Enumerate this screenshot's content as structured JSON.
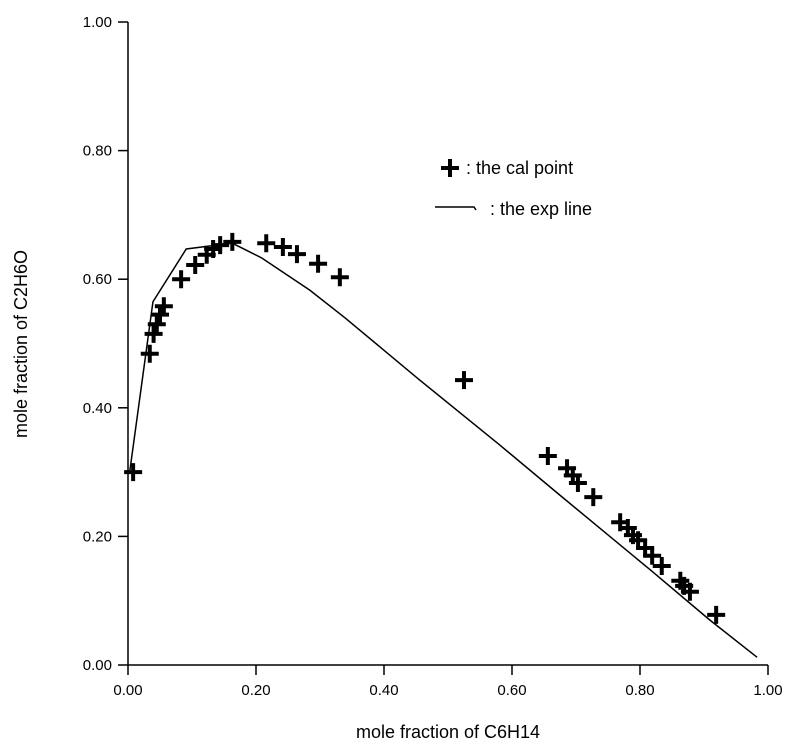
{
  "chart_data": {
    "type": "scatter",
    "xlabel": "mole fraction of C6H14",
    "ylabel": "mole fraction of C2H6O",
    "xlim": [
      0,
      1
    ],
    "ylim": [
      0,
      1
    ],
    "xticks": [
      {
        "value": 0,
        "label": "0.00"
      },
      {
        "value": 0.2,
        "label": "0.20"
      },
      {
        "value": 0.4,
        "label": "0.40"
      },
      {
        "value": 0.6,
        "label": "0.60"
      },
      {
        "value": 0.8,
        "label": "0.80"
      },
      {
        "value": 1,
        "label": "1.00"
      }
    ],
    "yticks": [
      {
        "value": 0,
        "label": "0.00"
      },
      {
        "value": 0.2,
        "label": "0.20"
      },
      {
        "value": 0.4,
        "label": "0.40"
      },
      {
        "value": 0.6,
        "label": "0.60"
      },
      {
        "value": 0.8,
        "label": "0.80"
      },
      {
        "value": 1,
        "label": "1.00"
      }
    ],
    "series": [
      {
        "name": ": the cal point",
        "mode": "markers",
        "color": "#000000",
        "x": [
          0.008,
          0.034,
          0.04,
          0.045,
          0.05,
          0.056,
          0.083,
          0.105,
          0.123,
          0.133,
          0.144,
          0.163,
          0.216,
          0.242,
          0.264,
          0.297,
          0.331,
          0.525,
          0.656,
          0.686,
          0.695,
          0.703,
          0.727,
          0.769,
          0.781,
          0.789,
          0.797,
          0.808,
          0.819,
          0.834,
          0.863,
          0.869,
          0.878,
          0.919
        ],
        "values": [
          0.3,
          0.484,
          0.515,
          0.53,
          0.545,
          0.558,
          0.6,
          0.622,
          0.638,
          0.647,
          0.653,
          0.658,
          0.656,
          0.65,
          0.639,
          0.624,
          0.603,
          0.443,
          0.325,
          0.306,
          0.295,
          0.283,
          0.261,
          0.222,
          0.213,
          0.202,
          0.194,
          0.182,
          0.17,
          0.154,
          0.131,
          0.123,
          0.114,
          0.078
        ]
      },
      {
        "name": ": the exp line",
        "mode": "line",
        "color": "#000000",
        "x": [
          0.003,
          0.039,
          0.091,
          0.163,
          0.209,
          0.284,
          0.339,
          0.456,
          0.581,
          0.675,
          0.816,
          0.909,
          0.983
        ],
        "values": [
          0.303,
          0.565,
          0.647,
          0.656,
          0.633,
          0.583,
          0.54,
          0.443,
          0.342,
          0.264,
          0.148,
          0.07,
          0.012
        ]
      }
    ]
  }
}
